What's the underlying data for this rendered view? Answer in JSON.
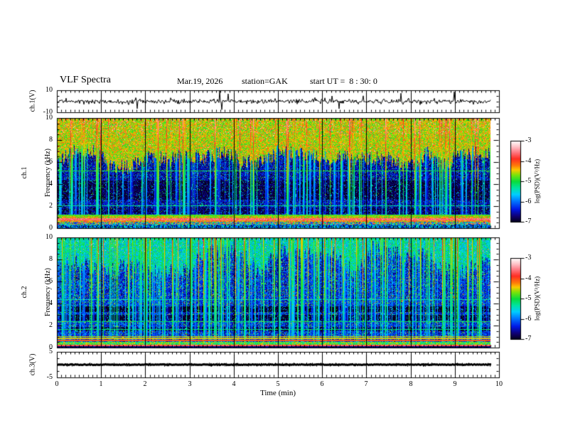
{
  "chart_data": {
    "type": "heatmap",
    "title": "VLF Spectra",
    "date": "Mar.19, 2026",
    "station": "station=GAK",
    "start_ut": "start UT =  8 : 30: 0",
    "background": "#ffffff",
    "axis_color": "#000000",
    "x": {
      "label": "Time (min)",
      "min": 0,
      "max": 10,
      "major_step": 1,
      "minor_step": 0.1,
      "data_end_min": 9.8,
      "ticks": [
        {
          "v": 0,
          "label": "0"
        },
        {
          "v": 1,
          "label": "1"
        },
        {
          "v": 2,
          "label": "2"
        },
        {
          "v": 3,
          "label": "3"
        },
        {
          "v": 4,
          "label": "4"
        },
        {
          "v": 5,
          "label": "5"
        },
        {
          "v": 6,
          "label": "6"
        },
        {
          "v": 7,
          "label": "7"
        },
        {
          "v": 8,
          "label": "8"
        },
        {
          "v": 9,
          "label": "9"
        },
        {
          "v": 10,
          "label": "10"
        }
      ]
    },
    "panels": [
      {
        "name": "ch.1 waveform",
        "kind": "waveform",
        "ylabel": "ch.1(V)",
        "ymin": -10,
        "ymax": 10,
        "yticks": [
          {
            "v": 10,
            "label": "10"
          },
          {
            "v": -10,
            "label": "-10"
          }
        ],
        "signal": {
          "seed": 4242,
          "sigma": 1.05,
          "spike_prob": 0.02,
          "spike_min": 3.5,
          "spike_max": 9
        }
      },
      {
        "name": "ch.1 spectrogram",
        "kind": "spectrogram",
        "ylabel_lines": [
          "ch.1",
          "Frequency (kHz)"
        ],
        "ymin": 0,
        "ymax": 10,
        "yticks": [
          {
            "v": 0,
            "label": "0"
          },
          {
            "v": 2,
            "label": "2"
          },
          {
            "v": 4,
            "label": "4"
          },
          {
            "v": 6,
            "label": "6"
          },
          {
            "v": 8,
            "label": "8"
          },
          {
            "v": 10,
            "label": "10"
          }
        ],
        "colorbar_index": 0,
        "model": {
          "seed": 20260319,
          "boundary": {
            "base": 6.3,
            "amp": 0.9
          },
          "upper": {
            "v": -4.55,
            "var": 0.45,
            "hot_prob": 0.05
          },
          "mid": {
            "v": -6.55,
            "var": 0.45,
            "speckle_prob": 0.07
          },
          "streaks": {
            "prob": 0.28,
            "min": 0.8,
            "max": 2.6,
            "fade": 0.4
          },
          "dark_bands": [
            [
              2.6,
              4.3,
              0.35
            ],
            [
              1.3,
              1.9,
              0.25
            ]
          ],
          "h_lines": [
            {
              "f": 5.2,
              "v": -5.0
            },
            {
              "f": 2.05,
              "v": -5.3
            },
            {
              "f": 1.15,
              "v": -4.8
            }
          ],
          "bottom_bands": [
            {
              "f": [
                0.92,
                1.08
              ],
              "v": -4.5,
              "var": 0.5
            },
            {
              "f": [
                0.7,
                0.92
              ],
              "v": -3.62,
              "var": 0.18
            },
            {
              "f": [
                0.55,
                0.7
              ],
              "v": -4.25,
              "var": 0.5
            },
            {
              "f": [
                0.32,
                0.55
              ],
              "v": -5.0,
              "var": 1.5
            },
            {
              "f": [
                0.0,
                0.32
              ],
              "v": -5.95,
              "var": 0.9
            }
          ]
        }
      },
      {
        "name": "ch.2 spectrogram",
        "kind": "spectrogram",
        "ylabel_lines": [
          "ch.2",
          "Frequency (kHz)"
        ],
        "ymin": 0,
        "ymax": 10,
        "yticks": [
          {
            "v": 0,
            "label": "0"
          },
          {
            "v": 2,
            "label": "2"
          },
          {
            "v": 4,
            "label": "4"
          },
          {
            "v": 6,
            "label": "6"
          },
          {
            "v": 8,
            "label": "8"
          },
          {
            "v": 10,
            "label": "10"
          }
        ],
        "colorbar_index": 1,
        "model": {
          "seed": 830,
          "boundary": {
            "base": 7.9,
            "amp": 1.3
          },
          "upper": {
            "v": -5.4,
            "var": 0.55,
            "hot_prob": 0.012
          },
          "mid": {
            "v": -6.35,
            "var": 0.5,
            "speckle_prob": 0.12
          },
          "streaks": {
            "prob": 0.42,
            "min": 0.6,
            "max": 2.2,
            "fade": 0.55
          },
          "dark_bands": [
            [
              2.45,
              2.95,
              0.8
            ],
            [
              3.25,
              3.75,
              0.8
            ],
            [
              1.5,
              1.85,
              0.6
            ]
          ],
          "h_lines": [
            {
              "f": 4.35,
              "v": -5.5
            },
            {
              "f": 2.35,
              "v": -5.1
            },
            {
              "f": 1.65,
              "v": -5.15
            },
            {
              "f": 1.0,
              "v": -4.5
            },
            {
              "f": 0.85,
              "v": -4.45
            },
            {
              "f": 0.65,
              "v": -4.05
            }
          ],
          "bottom_bands": [
            {
              "f": [
                0.28,
                0.5
              ],
              "v": -4.9,
              "var": 0.6
            },
            {
              "f": [
                0.16,
                0.24
              ],
              "v": -3.7,
              "var": 0.2
            },
            {
              "f": [
                0.0,
                0.14
              ],
              "v": -6.75,
              "var": 0.25
            }
          ]
        }
      },
      {
        "name": "ch.3 waveform",
        "kind": "waveform-flat",
        "ylabel": "ch.3(V)",
        "ymin": -5,
        "ymax": 5,
        "yticks": [
          {
            "v": 5,
            "label": "5"
          },
          {
            "v": -5,
            "label": "-5"
          }
        ],
        "signal": {
          "seed": 7,
          "value": 0,
          "thickness": 3.2,
          "jitter": 1.0
        }
      }
    ],
    "colorbars": [
      {
        "label": "log(PSD)(V²/Hz)",
        "vmin": -7,
        "vmax": -3,
        "ticks": [
          {
            "v": -3,
            "label": "-3"
          },
          {
            "v": -4,
            "label": "-4"
          },
          {
            "v": -5,
            "label": "-5"
          },
          {
            "v": -6,
            "label": "-6"
          },
          {
            "v": -7,
            "label": "-7"
          }
        ]
      },
      {
        "label": "log(PSD)(V²/Hz)",
        "vmin": -7,
        "vmax": -3,
        "ticks": [
          {
            "v": -3,
            "label": "-3"
          },
          {
            "v": -4,
            "label": "-4"
          },
          {
            "v": -5,
            "label": "-5"
          },
          {
            "v": -6,
            "label": "-6"
          },
          {
            "v": -7,
            "label": "-7"
          }
        ]
      }
    ],
    "colormap_stops": [
      [
        0.0,
        5,
        0,
        25
      ],
      [
        0.07,
        15,
        0,
        110
      ],
      [
        0.16,
        0,
        25,
        230
      ],
      [
        0.26,
        0,
        120,
        255
      ],
      [
        0.34,
        0,
        205,
        255
      ],
      [
        0.42,
        0,
        228,
        160
      ],
      [
        0.5,
        10,
        220,
        60
      ],
      [
        0.58,
        120,
        228,
        10
      ],
      [
        0.645,
        252,
        200,
        0
      ],
      [
        0.7,
        255,
        120,
        10
      ],
      [
        0.78,
        255,
        45,
        35
      ],
      [
        0.86,
        255,
        120,
        130
      ],
      [
        0.93,
        255,
        195,
        200
      ],
      [
        1.0,
        255,
        255,
        255
      ]
    ]
  }
}
